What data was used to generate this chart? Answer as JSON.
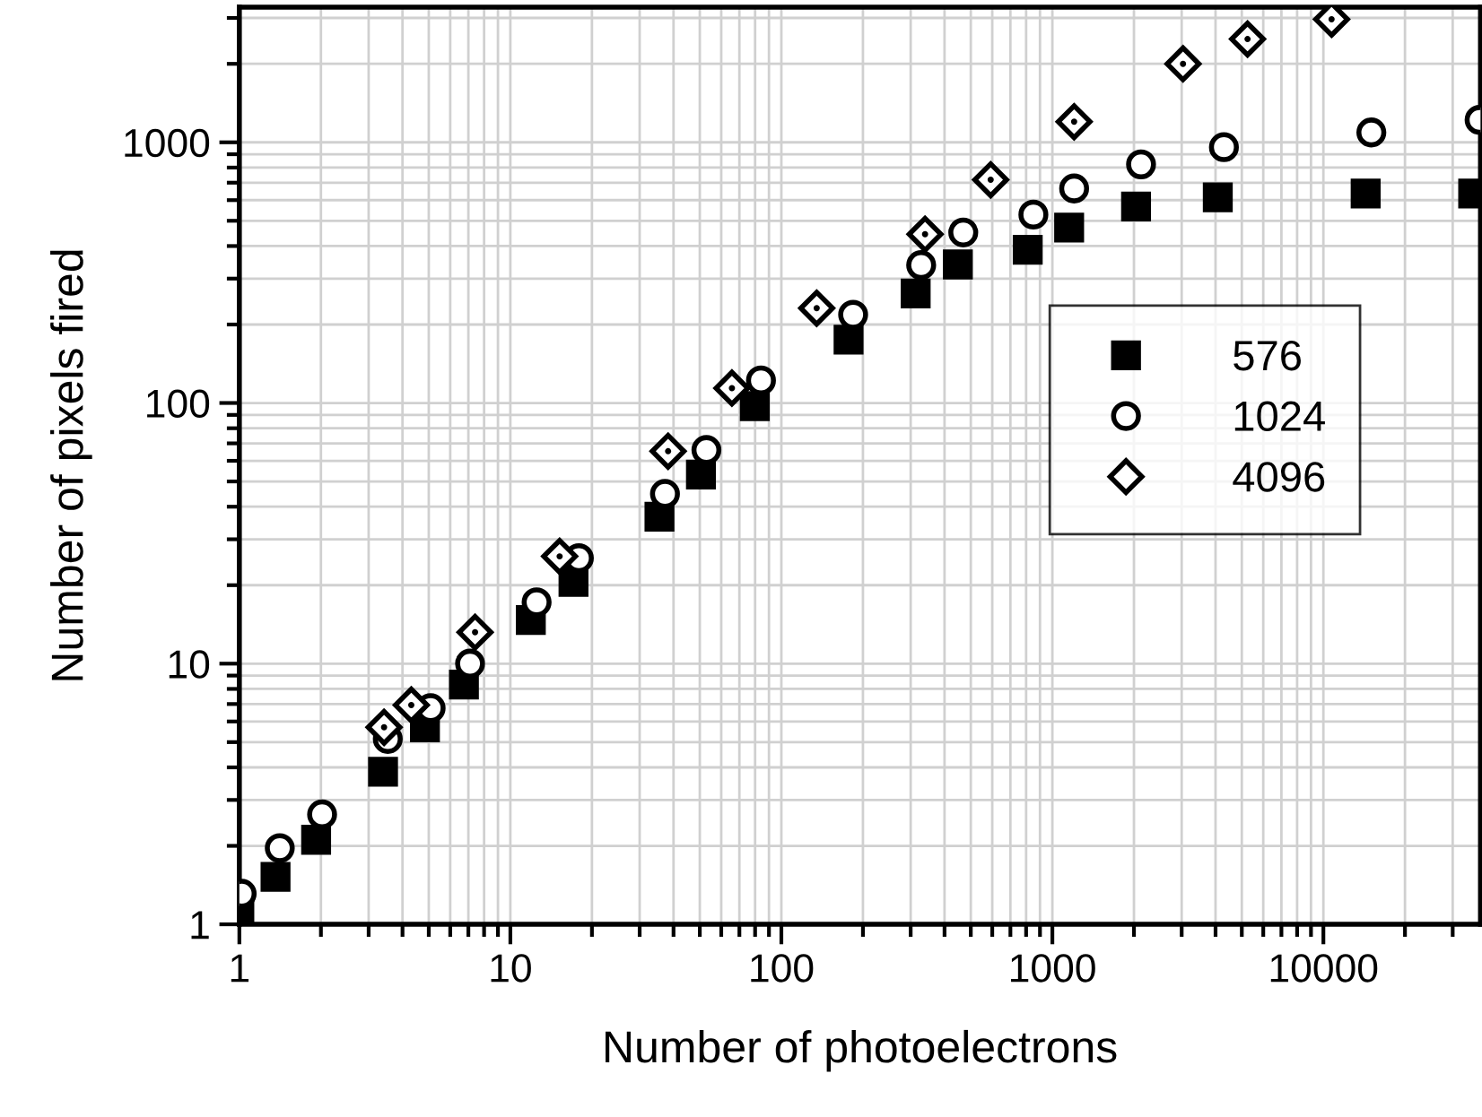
{
  "chart_data": {
    "type": "scatter",
    "xlabel": "Number of photoelectrons",
    "ylabel": "Number of pixels fired",
    "log": "xy",
    "grid": true,
    "legend": "right",
    "xlim": [
      1,
      38000
    ],
    "xticks": [
      1,
      10,
      100,
      1000,
      10000
    ],
    "ylim": [
      1,
      3300
    ],
    "yticks": [
      1,
      10,
      100,
      1000
    ],
    "series": [
      {
        "name": "576",
        "color": "#000000",
        "marker": "square",
        "x": [
          1,
          1.36,
          1.92,
          3.39,
          4.84,
          6.74,
          11.9,
          17.1,
          35.5,
          50.5,
          79.8,
          177,
          313,
          448,
          811,
          1153,
          2036,
          4077,
          14320,
          35700
        ],
        "values": [
          1.09,
          1.52,
          2.11,
          3.85,
          5.7,
          8.31,
          14.7,
          20.6,
          36.6,
          53.1,
          97.3,
          175,
          263,
          340,
          387,
          471,
          567,
          615,
          636,
          636
        ]
      },
      {
        "name": "1024",
        "color": "#000000",
        "marker": "circle",
        "x": [
          1.02,
          1.41,
          2.02,
          3.53,
          5.08,
          7.1,
          12.5,
          17.9,
          37.2,
          52.9,
          84.1,
          184,
          328,
          469,
          851,
          1203,
          2124,
          4295,
          15030,
          37700
        ],
        "values": [
          1.31,
          1.96,
          2.64,
          5.14,
          6.75,
          10,
          17.2,
          25.4,
          44.8,
          66,
          122,
          218,
          338,
          451,
          528,
          665,
          823,
          958,
          1091,
          1219
        ]
      },
      {
        "name": "4096",
        "color": "#000000",
        "marker": "diamond",
        "x": [
          3.42,
          4.31,
          7.41,
          15.2,
          38.2,
          65.7,
          135,
          339,
          592,
          1203,
          3034,
          5250,
          10720
        ],
        "values": [
          5.7,
          6.94,
          13.2,
          25.8,
          65.3,
          114,
          231,
          444,
          718,
          1199,
          2000,
          2489,
          2965
        ]
      }
    ]
  }
}
